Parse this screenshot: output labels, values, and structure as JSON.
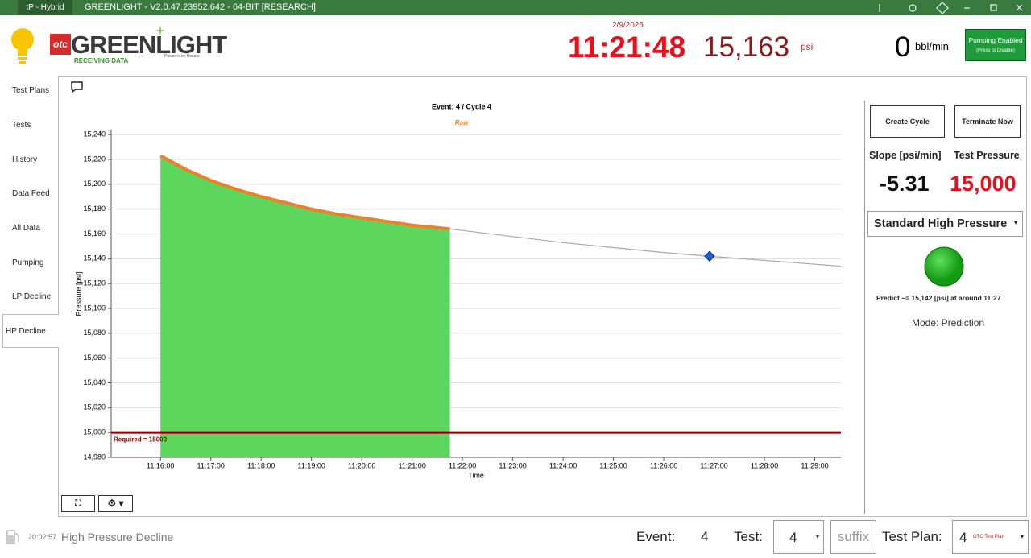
{
  "title_bar": {
    "app": "tP - Hybrid",
    "title": "GREENLIGHT - V2.0.47.23952.642 - 64-BIT [RESEARCH]"
  },
  "header": {
    "logo_prefix": "otc",
    "logo": "GREENLIGHT",
    "status": "RECEIVING DATA",
    "powered_by": "Powered by Hecate",
    "date": "2/9/2025",
    "time": "11:21:48",
    "pressure": "15,163",
    "pressure_unit": "psi",
    "rate": "0",
    "rate_unit": "bbl/min",
    "pump_button": {
      "label": "Pumping Enabled",
      "sub": "(Press to Disable)"
    }
  },
  "nav": [
    "Test Plans",
    "Tests",
    "History",
    "Data Feed",
    "All Data",
    "Pumping",
    "LP Decline",
    "HP Decline"
  ],
  "chart_data": {
    "type": "line",
    "title": "Event: 4 / Cycle 4",
    "x_label": "Time",
    "y_label": "Pressure [psi]",
    "xlim": [
      675.02,
      689.52
    ],
    "xticks": [
      {
        "value": 676,
        "label": "11:16:00"
      },
      {
        "value": 677,
        "label": "11:17:00"
      },
      {
        "value": 678,
        "label": "11:18:00"
      },
      {
        "value": 679,
        "label": "11:19:00"
      },
      {
        "value": 680,
        "label": "11:20:00"
      },
      {
        "value": 681,
        "label": "11:21:00"
      },
      {
        "value": 682,
        "label": "11:22:00"
      },
      {
        "value": 683,
        "label": "11:23:00"
      },
      {
        "value": 684,
        "label": "11:24:00"
      },
      {
        "value": 685,
        "label": "11:25:00"
      },
      {
        "value": 686,
        "label": "11:26:00"
      },
      {
        "value": 687,
        "label": "11:27:00"
      },
      {
        "value": 688,
        "label": "11:28:00"
      },
      {
        "value": 689,
        "label": "11:29:00"
      }
    ],
    "ylim": [
      14980,
      15244
    ],
    "yticks": [
      {
        "value": 14980,
        "label": "14,980"
      },
      {
        "value": 15000,
        "label": "15,000"
      },
      {
        "value": 15020,
        "label": "15,020"
      },
      {
        "value": 15040,
        "label": "15,040"
      },
      {
        "value": 15060,
        "label": "15,060"
      },
      {
        "value": 15080,
        "label": "15,080"
      },
      {
        "value": 15100,
        "label": "15,100"
      },
      {
        "value": 15120,
        "label": "15,120"
      },
      {
        "value": 15140,
        "label": "15,140"
      },
      {
        "value": 15160,
        "label": "15,160"
      },
      {
        "value": 15180,
        "label": "15,180"
      },
      {
        "value": 15200,
        "label": "15,200"
      },
      {
        "value": 15220,
        "label": "15,220"
      },
      {
        "value": 15240,
        "label": "15,240"
      }
    ],
    "grid": true,
    "series": [
      {
        "name": "Raw",
        "color": "#f07f2a",
        "fill": "#5cd65c",
        "x": [
          676,
          676.5,
          677,
          677.5,
          678,
          678.5,
          679,
          679.5,
          680,
          680.5,
          681,
          681.5,
          681.75
        ],
        "values": [
          15223,
          15212,
          15203,
          15196,
          15190,
          15185,
          15180,
          15176,
          15173,
          15170,
          15167,
          15165,
          15164
        ]
      },
      {
        "color": "#a8a8a8",
        "x": [
          681.75,
          684,
          686,
          686.91,
          689.52
        ],
        "values": [
          15164,
          15153,
          15145,
          15142,
          15134
        ]
      }
    ],
    "required": {
      "value": 15000,
      "label": "Required = 15000",
      "color": "#8b0000"
    },
    "prediction_point": {
      "x": 686.91,
      "y": 15142,
      "color": "#1f5fd6"
    }
  },
  "side_panel": {
    "buttons": [
      "Create Cycle",
      "Terminate Now"
    ],
    "slope_label": "Slope [psi/min]",
    "slope": "-5.31",
    "test_pressure_label": "Test Pressure",
    "test_pressure": "15,000",
    "preset": "Standard High Pressure",
    "prediction": "Predict ~= 15,142 [psi] at around 11:27",
    "mode": "Mode: Prediction"
  },
  "footer": {
    "clock": "20:02:57",
    "page": "High Pressure Decline",
    "event_label": "Event:",
    "event": "4",
    "test_label": "Test:",
    "test": "4",
    "suffix": "suffix",
    "plan_label": "Test Plan:",
    "plan": "4",
    "plan_name": "OTC Test Plan"
  }
}
